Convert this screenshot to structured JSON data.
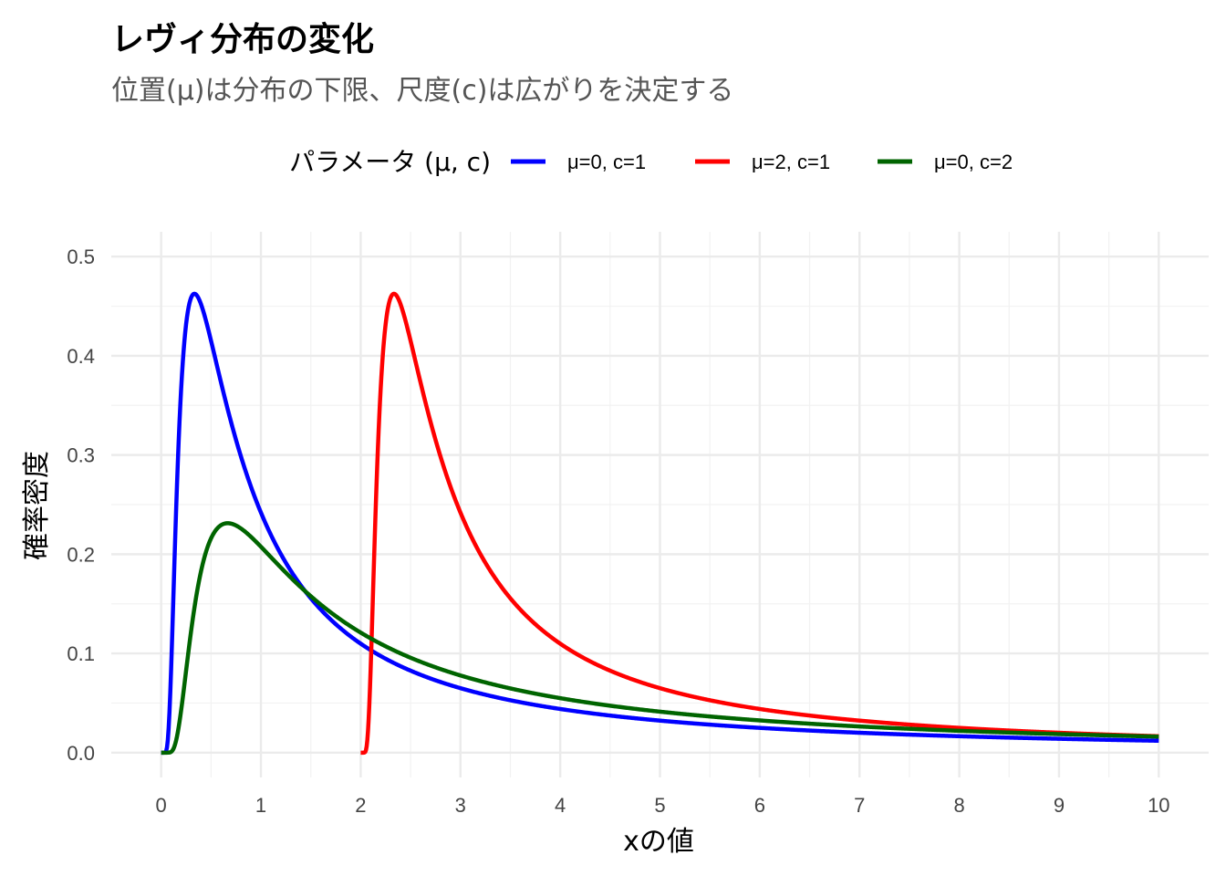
{
  "chart_data": {
    "type": "line",
    "title": "レヴィ分布の変化",
    "subtitle": "位置(μ)は分布の下限、尺度(c)は広がりを決定する",
    "xlabel": "xの値",
    "ylabel": "確率密度",
    "xlim": [
      -0.5,
      10.5
    ],
    "ylim": [
      -0.025,
      0.525
    ],
    "x_ticks": [
      0,
      1,
      2,
      3,
      4,
      5,
      6,
      7,
      8,
      9,
      10
    ],
    "y_ticks": [
      0.0,
      0.1,
      0.2,
      0.3,
      0.4,
      0.5
    ],
    "y_tick_labels": [
      "0.0",
      "0.1",
      "0.2",
      "0.3",
      "0.4",
      "0.5"
    ],
    "grid": true,
    "legend_position": "top",
    "legend_title": "パラメータ (μ, c)",
    "series": [
      {
        "name": "μ=0, c=1",
        "mu": 0,
        "c": 1,
        "color": "#0000FF"
      },
      {
        "name": "μ=2, c=1",
        "mu": 2,
        "c": 1,
        "color": "#FF0000"
      },
      {
        "name": "μ=0, c=2",
        "mu": 0,
        "c": 2,
        "color": "#006400"
      }
    ]
  }
}
